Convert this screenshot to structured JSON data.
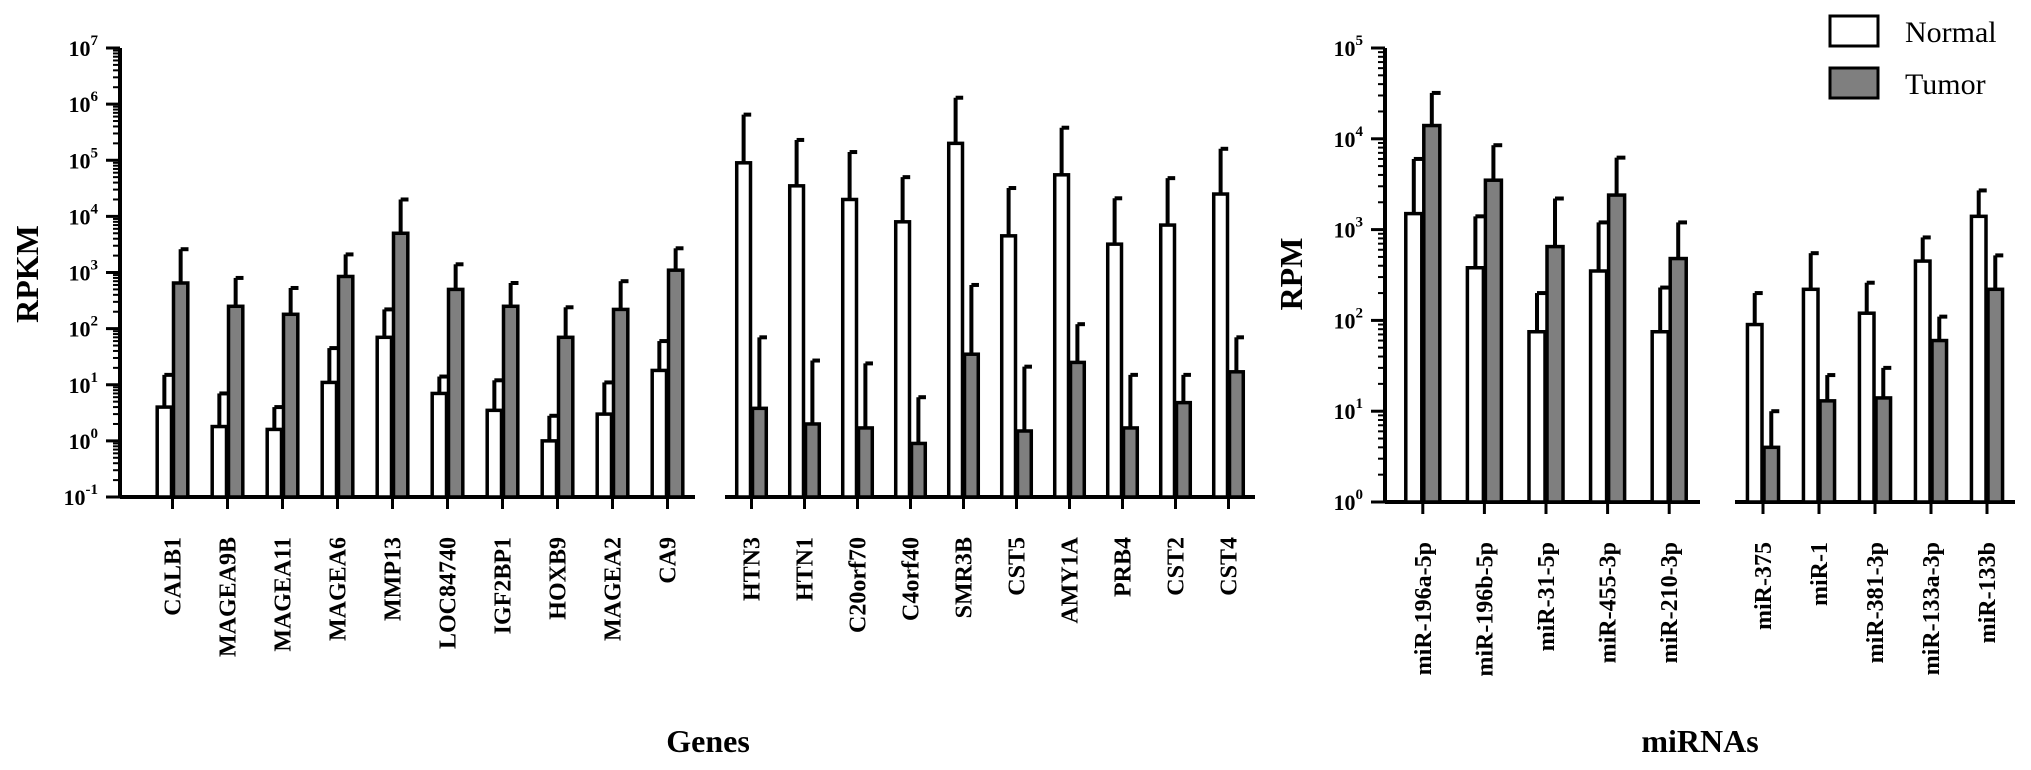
{
  "chart_data": [
    {
      "type": "bar",
      "ylabel": "RPKM",
      "xlabel": "Genes",
      "yscale": "log",
      "ylim": [
        0.1,
        10000000
      ],
      "yticks": [
        {
          "base": "10",
          "exp": "-1"
        },
        {
          "base": "10",
          "exp": "0"
        },
        {
          "base": "10",
          "exp": "1"
        },
        {
          "base": "10",
          "exp": "2"
        },
        {
          "base": "10",
          "exp": "3"
        },
        {
          "base": "10",
          "exp": "4"
        },
        {
          "base": "10",
          "exp": "5"
        },
        {
          "base": "10",
          "exp": "6"
        },
        {
          "base": "10",
          "exp": "7"
        }
      ],
      "categories": [
        "CALB1",
        "MAGEA9B",
        "MAGEA11",
        "MAGEA6",
        "MMP13",
        "LOC84740",
        "IGF2BP1",
        "HOXB9",
        "MAGEA2",
        "CA9",
        "HTN3",
        "HTN1",
        "C20orf70",
        "C4orf40",
        "SMR3B",
        "CST5",
        "AMY1A",
        "PRB4",
        "CST2",
        "CST4"
      ],
      "groups": [
        10,
        10
      ],
      "series": [
        {
          "name": "Normal",
          "values": [
            4,
            1.8,
            1.6,
            11,
            70,
            7,
            3.5,
            1,
            3,
            18,
            90000,
            35000,
            20000,
            8000,
            200000,
            4500,
            55000,
            3200,
            7000,
            25000
          ],
          "error_upper": [
            15,
            7,
            4,
            45,
            220,
            14,
            12,
            2.8,
            11,
            60,
            650000,
            230000,
            140000,
            50000,
            1300000,
            32000,
            380000,
            21000,
            48000,
            160000
          ]
        },
        {
          "name": "Tumor",
          "values": [
            650,
            250,
            180,
            850,
            5000,
            500,
            250,
            70,
            220,
            1100,
            3.8,
            2,
            1.7,
            0.9,
            35,
            1.5,
            25,
            1.7,
            4.8,
            17
          ],
          "error_upper": [
            2600,
            800,
            530,
            2100,
            20000,
            1400,
            650,
            240,
            700,
            2700,
            70,
            27,
            24,
            6,
            600,
            21,
            120,
            15,
            15,
            70
          ]
        }
      ]
    },
    {
      "type": "bar",
      "ylabel": "RPM",
      "xlabel": "miRNAs",
      "yscale": "log",
      "ylim": [
        1,
        100000
      ],
      "yticks": [
        {
          "base": "10",
          "exp": "0"
        },
        {
          "base": "10",
          "exp": "1"
        },
        {
          "base": "10",
          "exp": "2"
        },
        {
          "base": "10",
          "exp": "3"
        },
        {
          "base": "10",
          "exp": "4"
        },
        {
          "base": "10",
          "exp": "5"
        }
      ],
      "categories": [
        "miR-196a-5p",
        "miR-196b-5p",
        "miR-31-5p",
        "miR-455-3p",
        "miR-210-3p",
        "miR-375",
        "miR-1",
        "miR-381-3p",
        "miR-133a-3p",
        "miR-133b"
      ],
      "groups": [
        5,
        5
      ],
      "series": [
        {
          "name": "Normal",
          "values": [
            1500,
            380,
            75,
            350,
            75,
            90,
            220,
            120,
            450,
            1400
          ],
          "error_upper": [
            6000,
            1400,
            200,
            1200,
            230,
            200,
            550,
            260,
            820,
            2700
          ]
        },
        {
          "name": "Tumor",
          "values": [
            14000,
            3500,
            650,
            2400,
            480,
            4,
            13,
            14,
            60,
            220
          ],
          "error_upper": [
            32000,
            8500,
            2200,
            6200,
            1200,
            10,
            25,
            30,
            110,
            520
          ]
        }
      ]
    }
  ],
  "legend": {
    "position": "top-right",
    "items": [
      {
        "label": "Normal",
        "color": "#ffffff"
      },
      {
        "label": "Tumor",
        "color": "#7f7f7f"
      }
    ]
  }
}
